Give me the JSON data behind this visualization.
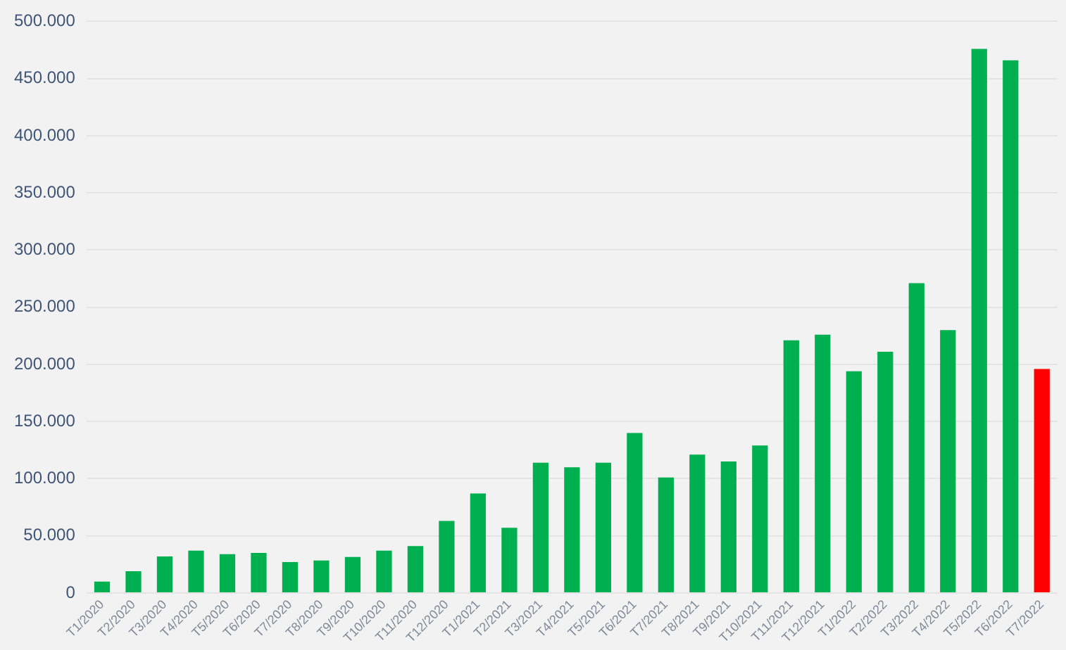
{
  "chart_data": {
    "type": "bar",
    "categories": [
      "T1/2020",
      "T2/2020",
      "T3/2020",
      "T4/2020",
      "T5/2020",
      "T6/2020",
      "T7/2020",
      "T8/2020",
      "T9/2020",
      "T10/2020",
      "T11/2020",
      "T12/2020",
      "T1/2021",
      "T2/2021",
      "T3/2021",
      "T4/2021",
      "T5/2021",
      "T6/2021",
      "T7/2021",
      "T8/2021",
      "T9/2021",
      "T10/2021",
      "T11/2021",
      "T12/2021",
      "T1/2022",
      "T2/2022",
      "T3/2022",
      "T4/2022",
      "T5/2022",
      "T6/2022",
      "T7/2022"
    ],
    "values": [
      10000,
      19000,
      32000,
      37000,
      34000,
      35000,
      27000,
      28500,
      31500,
      37000,
      41000,
      63000,
      87000,
      57000,
      114000,
      110000,
      114000,
      140000,
      101000,
      121000,
      115000,
      129000,
      221000,
      226000,
      194000,
      211000,
      271000,
      230000,
      476000,
      466000,
      196000
    ],
    "colors": [
      "#00b050",
      "#00b050",
      "#00b050",
      "#00b050",
      "#00b050",
      "#00b050",
      "#00b050",
      "#00b050",
      "#00b050",
      "#00b050",
      "#00b050",
      "#00b050",
      "#00b050",
      "#00b050",
      "#00b050",
      "#00b050",
      "#00b050",
      "#00b050",
      "#00b050",
      "#00b050",
      "#00b050",
      "#00b050",
      "#00b050",
      "#00b050",
      "#00b050",
      "#00b050",
      "#00b050",
      "#00b050",
      "#00b050",
      "#00b050",
      "#ff0000"
    ],
    "ylim": [
      0,
      500000
    ],
    "yticks": [
      {
        "value": 0,
        "label": "0"
      },
      {
        "value": 50000,
        "label": "50.000"
      },
      {
        "value": 100000,
        "label": "100.000"
      },
      {
        "value": 150000,
        "label": "150.000"
      },
      {
        "value": 200000,
        "label": "200.000"
      },
      {
        "value": 250000,
        "label": "250.000"
      },
      {
        "value": 300000,
        "label": "300.000"
      },
      {
        "value": 350000,
        "label": "350.000"
      },
      {
        "value": 400000,
        "label": "400.000"
      },
      {
        "value": 450000,
        "label": "450.000"
      },
      {
        "value": 500000,
        "label": "500.000"
      }
    ],
    "grid": "y",
    "legend": false
  }
}
